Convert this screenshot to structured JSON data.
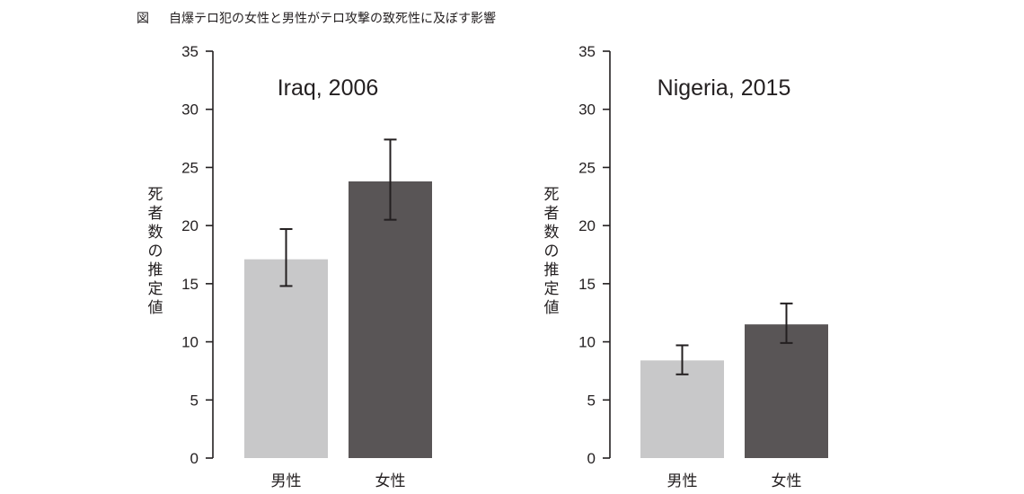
{
  "caption": {
    "prefix": "図",
    "text": "自爆テロ犯の女性と男性がテロ攻撃の致死性に及ぼす影響"
  },
  "colors": {
    "male_bar": "#c8c8c9",
    "female_bar": "#595556",
    "axis": "#231f20"
  },
  "chart_data": [
    {
      "type": "bar",
      "title": "Iraq, 2006",
      "ylabel": "死者数の推定値",
      "categories": [
        "男性",
        "女性"
      ],
      "values": [
        17.1,
        23.8
      ],
      "error_low": [
        14.8,
        20.5
      ],
      "error_high": [
        19.7,
        27.4
      ],
      "ylim": [
        0,
        35
      ],
      "yticks": [
        0,
        5,
        10,
        15,
        20,
        25,
        30,
        35
      ],
      "grid": false,
      "legend": "none"
    },
    {
      "type": "bar",
      "title": "Nigeria, 2015",
      "ylabel": "死者数の推定値",
      "categories": [
        "男性",
        "女性"
      ],
      "values": [
        8.4,
        11.5
      ],
      "error_low": [
        7.2,
        9.9
      ],
      "error_high": [
        9.7,
        13.3
      ],
      "ylim": [
        0,
        35
      ],
      "yticks": [
        0,
        5,
        10,
        15,
        20,
        25,
        30,
        35
      ],
      "grid": false,
      "legend": "none"
    }
  ]
}
